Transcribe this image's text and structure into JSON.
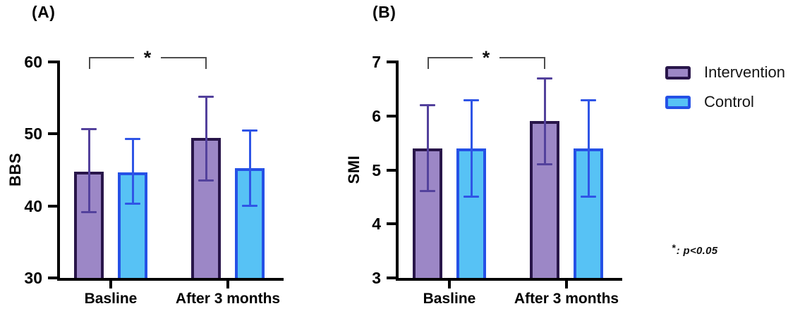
{
  "figure": {
    "background": "#ffffff",
    "bracket_color": "#4d4d4d",
    "axis_color": "#000000",
    "legend": [
      {
        "label": "Intervention",
        "fill": "#9c87c6",
        "border": "#29164a",
        "err": "#53419c"
      },
      {
        "label": "Control",
        "fill": "#57c2f5",
        "border": "#2551e6",
        "err": "#2f55e6"
      }
    ],
    "note_star": "*",
    "note_rest": ": p<0.05"
  },
  "chart_data": [
    {
      "type": "bar",
      "title": "(A)",
      "ylabel": "BBS",
      "xlabel": "",
      "ylim": [
        30,
        60
      ],
      "yticks": [
        30,
        40,
        50,
        60
      ],
      "grid": false,
      "legend_position": "right-of-figure",
      "categories": [
        "Basline",
        "After 3 months"
      ],
      "series": [
        {
          "name": "Intervention",
          "values": [
            44.8,
            49.4
          ],
          "err_low": [
            39.1,
            43.5
          ],
          "err_high": [
            50.7,
            55.2
          ]
        },
        {
          "name": "Control",
          "values": [
            44.7,
            45.2
          ],
          "err_low": [
            40.3,
            40.0
          ],
          "err_high": [
            49.3,
            50.5
          ]
        }
      ],
      "significance": {
        "label": "*",
        "series": "Intervention",
        "from": "Basline",
        "to": "After 3 months",
        "meaning": "p<0.05"
      }
    },
    {
      "type": "bar",
      "title": "(B)",
      "ylabel": "SMI",
      "xlabel": "",
      "ylim": [
        3,
        7
      ],
      "yticks": [
        3,
        4,
        5,
        6,
        7
      ],
      "grid": false,
      "legend_position": "right-of-figure",
      "categories": [
        "Basline",
        "After 3 months"
      ],
      "series": [
        {
          "name": "Intervention",
          "values": [
            5.4,
            5.9
          ],
          "err_low": [
            4.6,
            5.1
          ],
          "err_high": [
            6.2,
            6.7
          ]
        },
        {
          "name": "Control",
          "values": [
            5.4,
            5.4
          ],
          "err_low": [
            4.5,
            4.5
          ],
          "err_high": [
            6.3,
            6.3
          ]
        }
      ],
      "significance": {
        "label": "*",
        "series": "Intervention",
        "from": "Basline",
        "to": "After 3 months",
        "meaning": "p<0.05"
      }
    }
  ]
}
